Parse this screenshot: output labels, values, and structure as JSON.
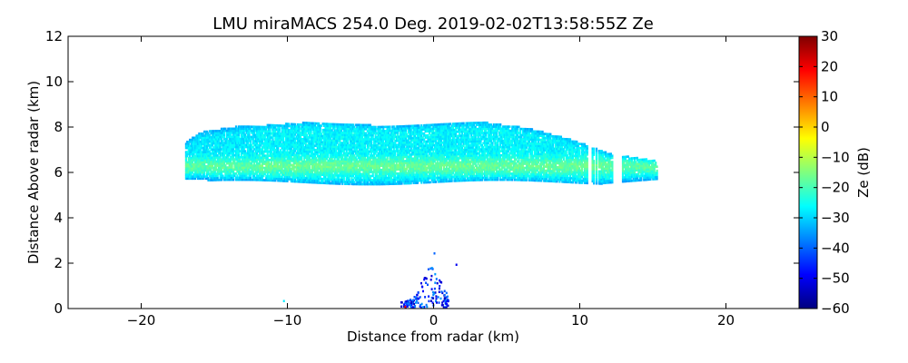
{
  "chart_data": {
    "type": "heatmap",
    "title": "LMU miraMACS 254.0 Deg. 2019-02-02T13:58:55Z  Ze",
    "xlabel": "Distance from radar (km)",
    "ylabel": "Distance Above radar  (km)",
    "xlim": [
      -25,
      25
    ],
    "ylim": [
      0,
      12
    ],
    "xticks": [
      -20,
      -10,
      0,
      10,
      20
    ],
    "xtick_labels": [
      "−20",
      "−10",
      "0",
      "10",
      "20"
    ],
    "yticks": [
      0,
      2,
      4,
      6,
      8,
      10,
      12
    ],
    "ytick_labels": [
      "0",
      "2",
      "4",
      "6",
      "8",
      "10",
      "12"
    ],
    "colorbar": {
      "label": "Ze (dB)",
      "range": [
        -60,
        30
      ],
      "ticks": [
        30,
        20,
        10,
        0,
        -10,
        -20,
        -30,
        -40,
        -50,
        -60
      ],
      "tick_labels": [
        "30",
        "20",
        "10",
        "0",
        "−10",
        "−20",
        "−30",
        "−40",
        "−50",
        "−60"
      ],
      "colormap": "jet",
      "colors": [
        "#00007f",
        "#0000ff",
        "#007fff",
        "#00ffff",
        "#7fff7f",
        "#ffff00",
        "#ff7f00",
        "#ff0000",
        "#7f0000"
      ]
    },
    "features": [
      {
        "name": "cloud layer",
        "x_range": [
          -17,
          15.3
        ],
        "z_range": [
          5.5,
          8.3
        ],
        "ze_typical": -25
      },
      {
        "name": "bright band",
        "x_range": [
          -17,
          15
        ],
        "z_range": [
          5.9,
          6.6
        ],
        "ze_typical": -18
      },
      {
        "name": "near-ground clutter",
        "x_range": [
          -2.5,
          1.5
        ],
        "z_range": [
          0,
          2.4
        ],
        "ze_typical": -45
      }
    ]
  }
}
